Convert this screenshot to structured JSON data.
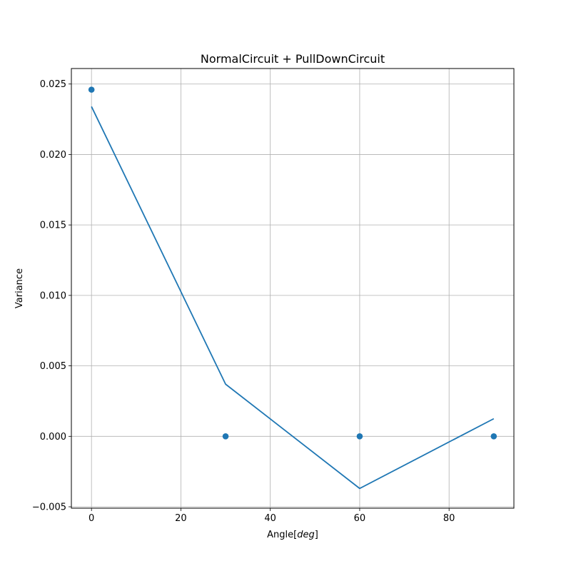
{
  "chart_data": {
    "type": "line+scatter",
    "title": "NormalCircuit + PullDownCircuit",
    "xlabel": "Angle",
    "xlabel_italic": "deg",
    "ylabel": "Variance",
    "xlim": [
      -4.5,
      94.5
    ],
    "ylim": [
      -0.0051,
      0.0261
    ],
    "grid": true,
    "x_ticks": [
      0,
      20,
      40,
      60,
      80
    ],
    "x_tick_labels": [
      "0",
      "20",
      "40",
      "60",
      "80"
    ],
    "y_ticks": [
      -0.005,
      0.0,
      0.005,
      0.01,
      0.015,
      0.02,
      0.025
    ],
    "y_tick_labels": [
      "−0.005",
      "0.000",
      "0.005",
      "0.010",
      "0.015",
      "0.020",
      "0.025"
    ],
    "series": [
      {
        "kind": "line",
        "color": "#1f77b4",
        "x": [
          0,
          30,
          60,
          90
        ],
        "y": [
          0.0234,
          0.0037,
          -0.0037,
          0.00125
        ]
      },
      {
        "kind": "scatter",
        "color": "#1f77b4",
        "x": [
          0,
          30,
          60,
          90
        ],
        "y": [
          0.0246,
          0.0,
          0.0,
          0.0
        ]
      }
    ]
  }
}
